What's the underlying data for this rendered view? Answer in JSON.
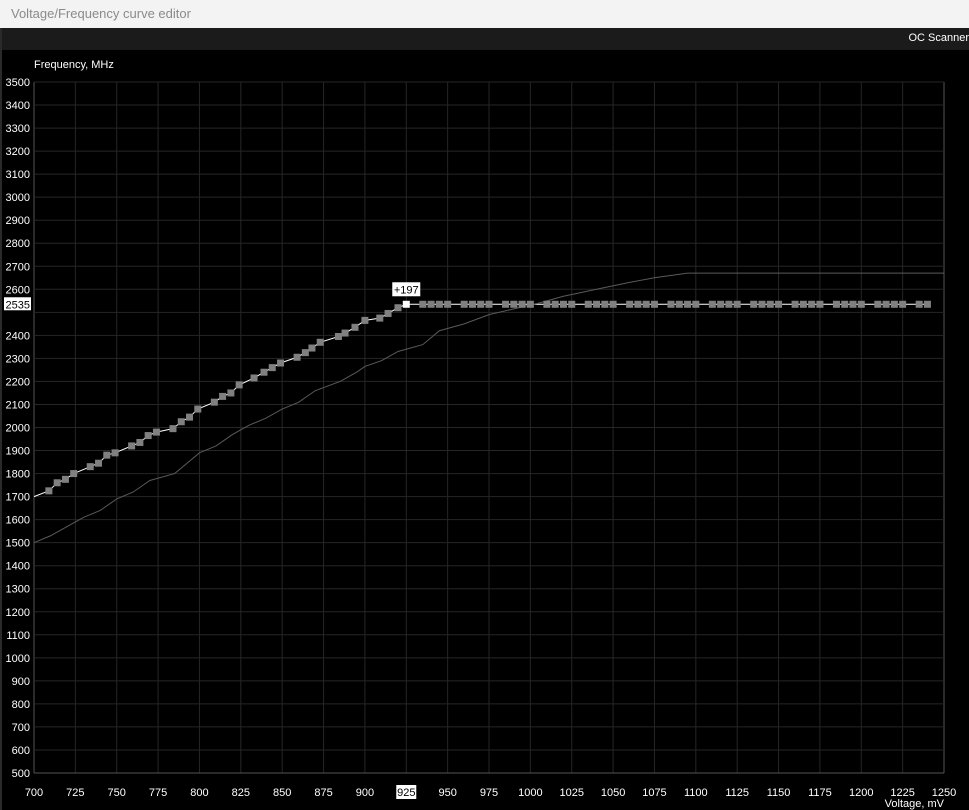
{
  "window": {
    "title": "Voltage/Frequency curve editor"
  },
  "toolbar": {
    "oc_scanner_label": "OC Scanner"
  },
  "chart_data": {
    "type": "line",
    "ylabel": "Frequency, MHz",
    "xlabel": "Voltage, mV",
    "xlim": [
      700,
      1250
    ],
    "ylim": [
      500,
      3500
    ],
    "x_ticks": [
      700,
      725,
      750,
      775,
      800,
      825,
      850,
      875,
      900,
      925,
      950,
      975,
      1000,
      1025,
      1050,
      1075,
      1100,
      1125,
      1150,
      1175,
      1200,
      1225,
      1250
    ],
    "y_ticks": [
      500,
      600,
      700,
      800,
      900,
      1000,
      1100,
      1200,
      1300,
      1400,
      1500,
      1600,
      1700,
      1800,
      1900,
      2000,
      2100,
      2200,
      2300,
      2400,
      2500,
      2600,
      2700,
      2800,
      2900,
      3000,
      3100,
      3200,
      3300,
      3400,
      3500
    ],
    "grid": true,
    "selected_point": {
      "voltage": 925,
      "frequency": 2535,
      "offset_label": "+197",
      "y_label": "2535",
      "x_label": "925"
    },
    "series": [
      {
        "role": "current curve",
        "color": "#ffffff",
        "points": [
          [
            700,
            1700
          ],
          [
            709,
            1725
          ],
          [
            714,
            1760
          ],
          [
            719,
            1775
          ],
          [
            724,
            1800
          ],
          [
            734,
            1830
          ],
          [
            739,
            1845
          ],
          [
            744,
            1880
          ],
          [
            749,
            1890
          ],
          [
            759,
            1920
          ],
          [
            764,
            1935
          ],
          [
            769,
            1965
          ],
          [
            774,
            1980
          ],
          [
            784,
            1995
          ],
          [
            789,
            2025
          ],
          [
            794,
            2045
          ],
          [
            799,
            2080
          ],
          [
            809,
            2110
          ],
          [
            814,
            2135
          ],
          [
            819,
            2150
          ],
          [
            824,
            2185
          ],
          [
            833,
            2215
          ],
          [
            839,
            2240
          ],
          [
            844,
            2260
          ],
          [
            849,
            2280
          ],
          [
            859,
            2305
          ],
          [
            864,
            2325
          ],
          [
            868,
            2345
          ],
          [
            873,
            2370
          ],
          [
            884,
            2395
          ],
          [
            888,
            2410
          ],
          [
            894,
            2435
          ],
          [
            900,
            2465
          ],
          [
            909,
            2475
          ],
          [
            914,
            2495
          ],
          [
            920,
            2520
          ],
          [
            925,
            2535
          ],
          [
            1240,
            2535
          ]
        ]
      },
      {
        "role": "default curve",
        "color": "#5a5a5a",
        "points": [
          [
            700,
            1500
          ],
          [
            710,
            1530
          ],
          [
            720,
            1570
          ],
          [
            730,
            1610
          ],
          [
            740,
            1640
          ],
          [
            750,
            1690
          ],
          [
            760,
            1720
          ],
          [
            770,
            1770
          ],
          [
            785,
            1800
          ],
          [
            795,
            1860
          ],
          [
            800,
            1890
          ],
          [
            810,
            1920
          ],
          [
            820,
            1970
          ],
          [
            830,
            2010
          ],
          [
            840,
            2040
          ],
          [
            850,
            2080
          ],
          [
            860,
            2110
          ],
          [
            870,
            2160
          ],
          [
            885,
            2200
          ],
          [
            895,
            2240
          ],
          [
            900,
            2265
          ],
          [
            910,
            2290
          ],
          [
            920,
            2330
          ],
          [
            935,
            2360
          ],
          [
            945,
            2420
          ],
          [
            960,
            2450
          ],
          [
            975,
            2490
          ],
          [
            990,
            2515
          ],
          [
            1005,
            2540
          ],
          [
            1020,
            2570
          ],
          [
            1040,
            2600
          ],
          [
            1060,
            2630
          ],
          [
            1075,
            2650
          ],
          [
            1095,
            2670
          ],
          [
            1250,
            2670
          ]
        ]
      }
    ],
    "point_markers": {
      "color": "#808080",
      "selected_color": "#ffffff"
    }
  }
}
